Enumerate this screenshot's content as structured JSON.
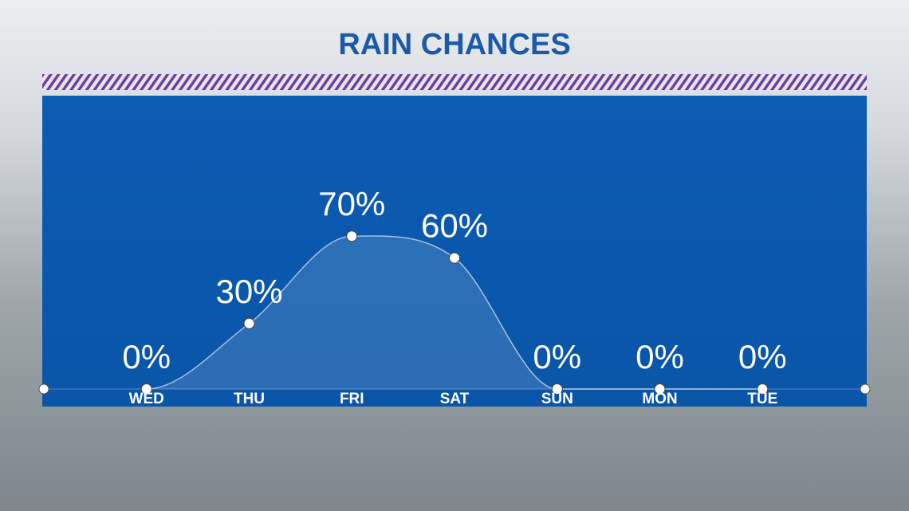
{
  "chart_data": {
    "type": "line",
    "title": "RAIN CHANCES",
    "categories": [
      "WED",
      "THU",
      "FRI",
      "SAT",
      "SUN",
      "MON",
      "TUE"
    ],
    "values": [
      0,
      30,
      70,
      60,
      0,
      0,
      0
    ],
    "value_labels": [
      "0%",
      "30%",
      "70%",
      "60%",
      "0%",
      "0%",
      "0%"
    ],
    "ylim": [
      0,
      100
    ],
    "color": "#ffffff"
  }
}
